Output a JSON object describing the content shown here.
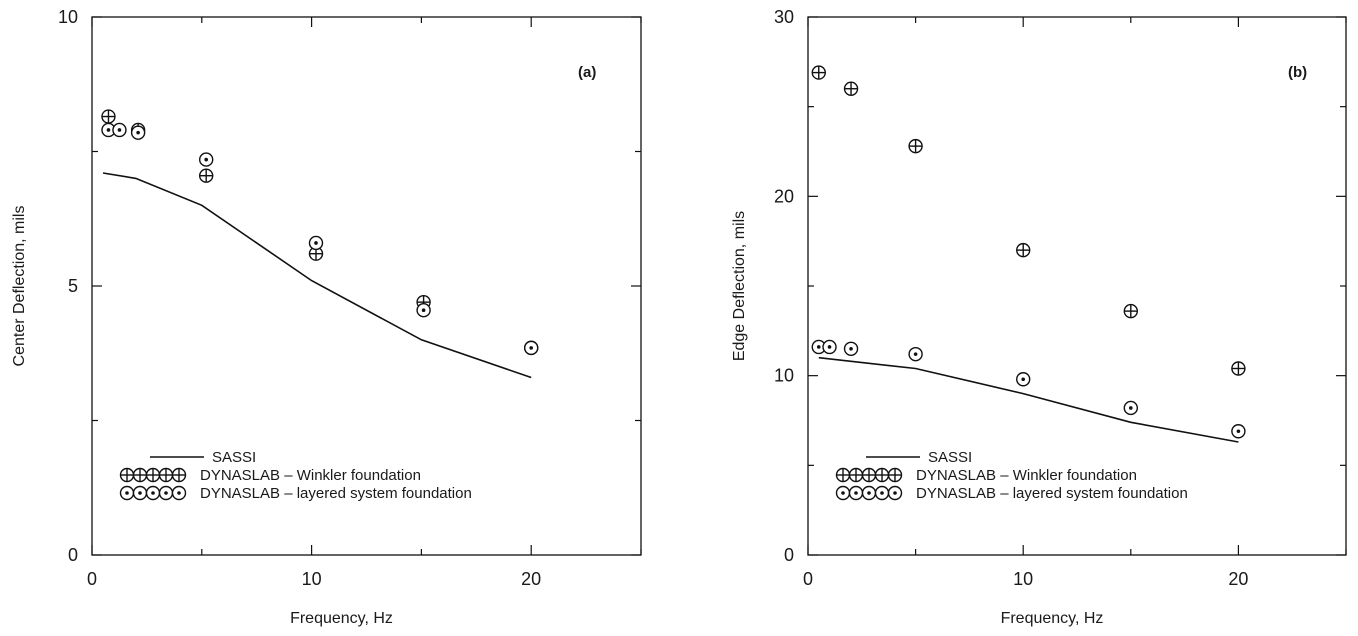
{
  "chart_data": [
    {
      "type": "line",
      "panel_label": "(a)",
      "xlabel": "Frequency, Hz",
      "ylabel": "Center Deflection, mils",
      "xlim": [
        0,
        25
      ],
      "ylim": [
        0,
        10
      ],
      "xticks": [
        0,
        10,
        20
      ],
      "yticks": [
        0,
        5,
        10
      ],
      "series": [
        {
          "name": "SASSI",
          "marker": "line",
          "x": [
            0.5,
            2,
            5,
            10,
            15,
            20
          ],
          "y": [
            7.1,
            7.0,
            6.5,
            5.1,
            4.0,
            3.3
          ]
        },
        {
          "name": "DYNASLAB  –  Winkler foundation",
          "marker": "circle-plus",
          "x": [
            0.75,
            2.1,
            5.2,
            10.2,
            15.1,
            20.0
          ],
          "y": [
            8.15,
            7.9,
            7.05,
            5.6,
            4.7,
            3.85
          ]
        },
        {
          "name": "DYNASLAB  –  layered system foundation",
          "marker": "circle-dot",
          "x": [
            0.75,
            1.25,
            2.1,
            5.2,
            10.2,
            15.1,
            20.0
          ],
          "y": [
            7.9,
            7.9,
            7.85,
            7.35,
            5.8,
            4.55,
            3.85
          ]
        }
      ],
      "legend": {
        "entries": [
          "SASSI",
          "DYNASLAB  –  Winkler foundation",
          "DYNASLAB  –  layered system foundation"
        ],
        "placement": "bottom-left"
      }
    },
    {
      "type": "line",
      "panel_label": "(b)",
      "xlabel": "Frequency, Hz",
      "ylabel": "Edge Deflection, mils",
      "xlim": [
        0,
        25
      ],
      "ylim": [
        0,
        30
      ],
      "xticks": [
        0,
        10,
        20
      ],
      "yticks": [
        0,
        10,
        20,
        30
      ],
      "series": [
        {
          "name": "SASSI",
          "marker": "line",
          "x": [
            0.5,
            2,
            5,
            10,
            15,
            20
          ],
          "y": [
            11.0,
            10.8,
            10.4,
            9.0,
            7.4,
            6.3
          ]
        },
        {
          "name": "DYNASLAB  –  Winkler foundation",
          "marker": "circle-plus",
          "x": [
            0.5,
            2.0,
            5.0,
            10.0,
            15.0,
            20.0
          ],
          "y": [
            26.9,
            26.0,
            22.8,
            17.0,
            13.6,
            10.4
          ]
        },
        {
          "name": "DYNASLAB  –  layered system foundation",
          "marker": "circle-dot",
          "x": [
            0.5,
            1.0,
            2.0,
            5.0,
            10.0,
            15.0,
            20.0
          ],
          "y": [
            11.6,
            11.6,
            11.5,
            11.2,
            9.8,
            8.2,
            6.9
          ]
        }
      ],
      "legend": {
        "entries": [
          "SASSI",
          "DYNASLAB  –  Winkler foundation",
          "DYNASLAB  –  layered system foundation"
        ],
        "placement": "bottom-left"
      }
    }
  ]
}
